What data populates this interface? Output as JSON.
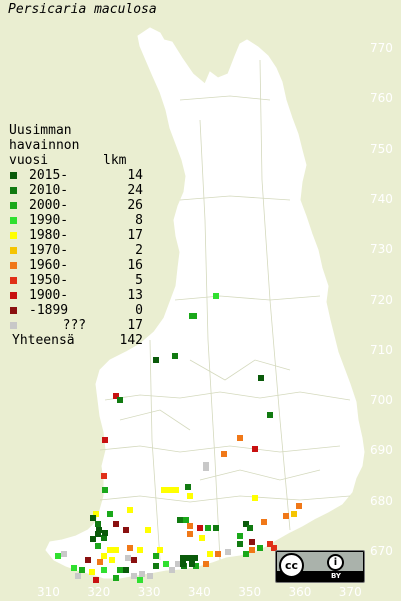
{
  "title": "Persicaria maculosa",
  "legend": {
    "heading_lines": [
      "Uusimman",
      "havainnon",
      "vuosi"
    ],
    "count_heading": "lkm",
    "rows": [
      {
        "period": "2015-",
        "count": "14",
        "color": "#0a5a0a"
      },
      {
        "period": "2010-",
        "count": "24",
        "color": "#117a11"
      },
      {
        "period": "2000-",
        "count": "26",
        "color": "#1aa81a"
      },
      {
        "period": "1990-",
        "count": "8",
        "color": "#30e030"
      },
      {
        "period": "1980-",
        "count": "17",
        "color": "#ffff00"
      },
      {
        "period": "1970-",
        "count": "2",
        "color": "#f5c400"
      },
      {
        "period": "1960-",
        "count": "16",
        "color": "#f07818"
      },
      {
        "period": "1950-",
        "count": "5",
        "color": "#e03018"
      },
      {
        "period": "1900-",
        "count": "13",
        "color": "#c81010"
      },
      {
        "period": "-1899",
        "count": "0",
        "color": "#8a1010"
      },
      {
        "period": "???",
        "count": "17",
        "color": "#c8c8c8"
      }
    ],
    "total_label": "Yhteensä",
    "total_count": "142"
  },
  "axis": {
    "y_ticks": [
      "770",
      "760",
      "750",
      "740",
      "730",
      "720",
      "710",
      "700",
      "690",
      "680",
      "670"
    ],
    "x_ticks": [
      "310",
      "320",
      "330",
      "340",
      "350",
      "360",
      "370"
    ]
  },
  "badge": {
    "cc": "cc",
    "by_icon": "person-icon",
    "by": "BY"
  }
}
